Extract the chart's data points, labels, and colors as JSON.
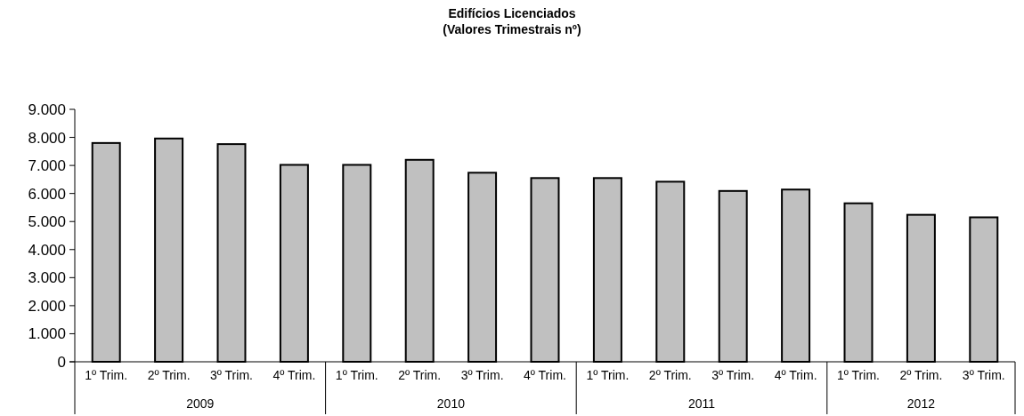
{
  "chart_data": {
    "type": "bar",
    "title": "Edifícios Licenciados",
    "subtitle": "(Valores Trimestrais nº)",
    "categories": [
      "1º Trim.",
      "2º Trim.",
      "3º Trim.",
      "4º Trim.",
      "1º Trim.",
      "2º Trim.",
      "3º Trim.",
      "4º Trim.",
      "1º Trim.",
      "2º Trim.",
      "3º Trim.",
      "4º Trim.",
      "1º Trim.",
      "2º Trim.",
      "3º Trim."
    ],
    "values": [
      7800,
      7960,
      7760,
      7020,
      7020,
      7200,
      6740,
      6550,
      6550,
      6420,
      6090,
      6140,
      5650,
      5240,
      5150
    ],
    "color": "#c0c0c0",
    "annotations": [
      "2009",
      "2010",
      "2011",
      "2012"
    ],
    "ylim": [
      0,
      9000
    ],
    "yticks": [
      {
        "value": 0,
        "label": "0"
      },
      {
        "value": 1000,
        "label": "1.000"
      },
      {
        "value": 2000,
        "label": "2.000"
      },
      {
        "value": 3000,
        "label": "3.000"
      },
      {
        "value": 4000,
        "label": "4.000"
      },
      {
        "value": 5000,
        "label": "5.000"
      },
      {
        "value": 6000,
        "label": "6.000"
      },
      {
        "value": 7000,
        "label": "7.000"
      },
      {
        "value": 8000,
        "label": "8.000"
      },
      {
        "value": 9000,
        "label": "9.000"
      }
    ],
    "grid": false
  }
}
